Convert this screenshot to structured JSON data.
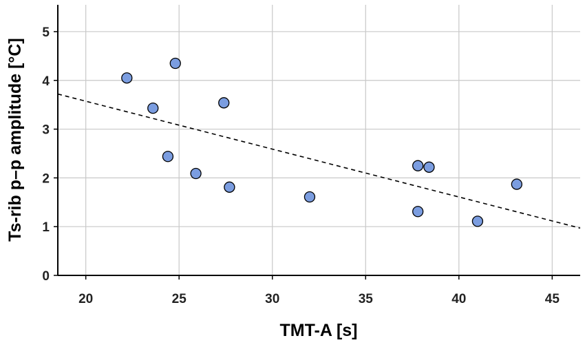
{
  "chart_data": {
    "type": "scatter",
    "xlabel": "TMT-A [s]",
    "ylabel": "Ts-rib p–p amplitude [°C]",
    "xlim": [
      18.5,
      46.5
    ],
    "ylim": [
      0,
      5.55
    ],
    "x_ticks": [
      20,
      25,
      30,
      35,
      40,
      45
    ],
    "y_ticks": [
      0,
      1,
      2,
      3,
      4,
      5
    ],
    "grid": true,
    "marker_color": "#7b9de0",
    "points": [
      {
        "x": 22.2,
        "y": 4.05
      },
      {
        "x": 24.8,
        "y": 4.35
      },
      {
        "x": 23.6,
        "y": 3.43
      },
      {
        "x": 27.4,
        "y": 3.54
      },
      {
        "x": 24.4,
        "y": 2.44
      },
      {
        "x": 25.9,
        "y": 2.09
      },
      {
        "x": 27.7,
        "y": 1.81
      },
      {
        "x": 32.0,
        "y": 1.61
      },
      {
        "x": 37.8,
        "y": 2.25
      },
      {
        "x": 38.4,
        "y": 2.22
      },
      {
        "x": 37.8,
        "y": 1.31
      },
      {
        "x": 41.0,
        "y": 1.11
      },
      {
        "x": 43.1,
        "y": 1.87
      }
    ],
    "trendline": {
      "style": "dashed",
      "x": [
        18.5,
        46.5
      ],
      "y": [
        3.72,
        0.97
      ]
    }
  }
}
